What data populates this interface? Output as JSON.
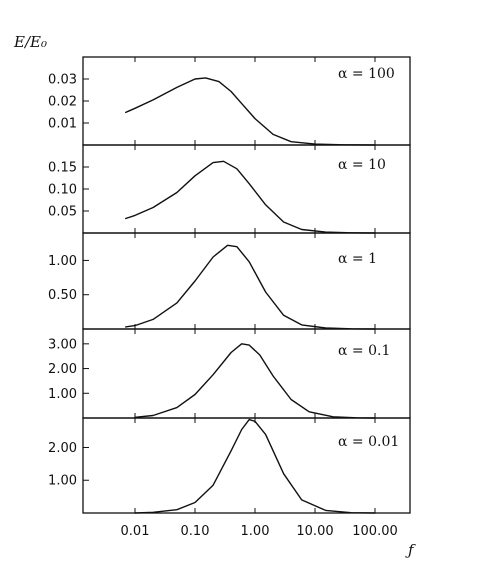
{
  "figure": {
    "y_axis_label": "E/E₀",
    "x_axis_label": "ƒ"
  },
  "chart_data": [
    {
      "type": "line",
      "panel_label": "α = 100",
      "xscale": "log",
      "xlim": [
        0.001,
        1000
      ],
      "ylim": [
        0,
        0.04
      ],
      "yticks": [
        0.01,
        0.02,
        0.03
      ],
      "ytick_labels": [
        "0.01",
        "0.02",
        "0.03"
      ],
      "grid": false,
      "x": [
        0.007,
        0.01,
        0.02,
        0.05,
        0.1,
        0.15,
        0.25,
        0.4,
        0.6,
        1.0,
        2.0,
        4.0,
        10.0,
        30.0,
        100.0
      ],
      "y": [
        0.0148,
        0.0167,
        0.0205,
        0.0262,
        0.03,
        0.0305,
        0.0288,
        0.0243,
        0.0188,
        0.012,
        0.0048,
        0.0015,
        0.0004,
        0.0001,
        0.0
      ]
    },
    {
      "type": "line",
      "panel_label": "α = 10",
      "xscale": "log",
      "xlim": [
        0.001,
        1000
      ],
      "ylim": [
        0,
        0.2
      ],
      "yticks": [
        0.05,
        0.1,
        0.15
      ],
      "ytick_labels": [
        "0.05",
        "0.10",
        "0.15"
      ],
      "grid": false,
      "x": [
        0.007,
        0.01,
        0.02,
        0.05,
        0.1,
        0.2,
        0.3,
        0.5,
        0.8,
        1.5,
        3.0,
        6.0,
        15.0,
        40.0,
        100.0
      ],
      "y": [
        0.033,
        0.04,
        0.058,
        0.092,
        0.13,
        0.16,
        0.163,
        0.146,
        0.112,
        0.064,
        0.025,
        0.008,
        0.002,
        0.0005,
        0.0
      ]
    },
    {
      "type": "line",
      "panel_label": "α = 1",
      "xscale": "log",
      "xlim": [
        0.001,
        1000
      ],
      "ylim": [
        0,
        1.4
      ],
      "yticks": [
        0.5,
        1.0
      ],
      "ytick_labels": [
        "0.50",
        "1.00"
      ],
      "grid": false,
      "x": [
        0.007,
        0.01,
        0.02,
        0.05,
        0.1,
        0.2,
        0.35,
        0.5,
        0.8,
        1.5,
        3.0,
        6.0,
        15.0,
        40.0,
        100.0
      ],
      "y": [
        0.03,
        0.05,
        0.14,
        0.38,
        0.7,
        1.05,
        1.22,
        1.2,
        0.98,
        0.54,
        0.2,
        0.06,
        0.015,
        0.003,
        0.0
      ]
    },
    {
      "type": "line",
      "panel_label": "α = 0.1",
      "xscale": "log",
      "xlim": [
        0.001,
        1000
      ],
      "ylim": [
        0,
        3.6
      ],
      "yticks": [
        1.0,
        2.0,
        3.0
      ],
      "ytick_labels": [
        "1.00",
        "2.00",
        "3.00"
      ],
      "grid": false,
      "x": [
        0.01,
        0.02,
        0.05,
        0.1,
        0.2,
        0.4,
        0.6,
        0.8,
        1.2,
        2.0,
        4.0,
        8.0,
        20.0,
        50.0,
        100.0
      ],
      "y": [
        0.03,
        0.1,
        0.42,
        0.95,
        1.75,
        2.65,
        3.0,
        2.95,
        2.55,
        1.7,
        0.75,
        0.25,
        0.05,
        0.01,
        0.0
      ]
    },
    {
      "type": "line",
      "panel_label": "α = 0.01",
      "xscale": "log",
      "xlim": [
        0.001,
        1000
      ],
      "ylim": [
        0,
        2.9
      ],
      "yticks": [
        1.0,
        2.0
      ],
      "ytick_labels": [
        "1.00",
        "2.00"
      ],
      "grid": false,
      "x": [
        0.01,
        0.02,
        0.05,
        0.1,
        0.2,
        0.4,
        0.6,
        0.8,
        1.0,
        1.5,
        3.0,
        6.0,
        15.0,
        40.0,
        100.0
      ],
      "y": [
        0.0,
        0.02,
        0.1,
        0.32,
        0.85,
        1.9,
        2.55,
        2.85,
        2.8,
        2.4,
        1.2,
        0.4,
        0.08,
        0.01,
        0.0
      ],
      "xticks": [
        0.01,
        0.1,
        1,
        10,
        100
      ],
      "xtick_labels": [
        "0.01",
        "0.10",
        "1.00",
        "10.00",
        "100.00"
      ]
    }
  ]
}
